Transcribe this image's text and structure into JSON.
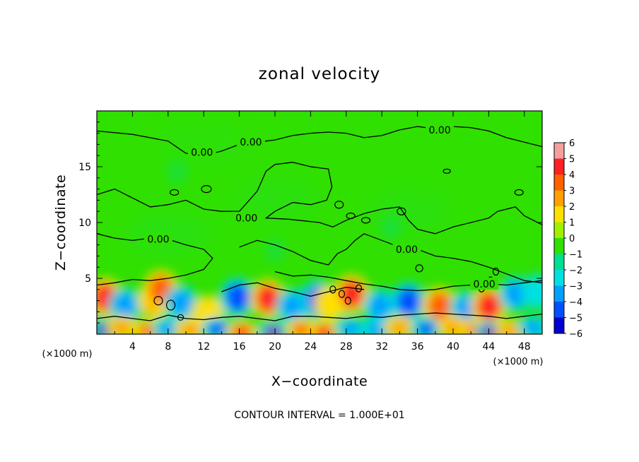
{
  "chart_data": {
    "type": "heatmap",
    "title": "zonal velocity",
    "xlabel": "X−coordinate",
    "ylabel": "Z−coordinate",
    "x_unit": "(×1000 m)",
    "y_unit": "(×1000 m)",
    "xlim": [
      0,
      50
    ],
    "ylim": [
      0,
      20
    ],
    "x_ticks": [
      4,
      8,
      12,
      16,
      20,
      24,
      28,
      32,
      36,
      40,
      44,
      48
    ],
    "y_ticks": [
      5,
      10,
      15
    ],
    "colorbar": {
      "ticks": [
        "6",
        "5",
        "4",
        "3",
        "2",
        "1",
        "0",
        "−1",
        "−2",
        "−3",
        "−4",
        "−5",
        "−6"
      ],
      "values": [
        6,
        5,
        4,
        3,
        2,
        1,
        0,
        -1,
        -2,
        -3,
        -4,
        -5,
        -6
      ],
      "colors": [
        "#f4a0a0",
        "#ff2020",
        "#ff6000",
        "#ffa000",
        "#ffe000",
        "#a0f000",
        "#30e000",
        "#00e090",
        "#00e0e0",
        "#00a0ff",
        "#0050ff",
        "#0000d0",
        "#8000c0"
      ]
    },
    "contour_interval": "CONTOUR INTERVAL = 1.000E+01",
    "contour_labels": [
      {
        "text": "0.00",
        "x": 11.8,
        "y": 16.3
      },
      {
        "text": "0.00",
        "x": 17.3,
        "y": 17.2
      },
      {
        "text": "0.00",
        "x": 38.5,
        "y": 18.3
      },
      {
        "text": "0.00",
        "x": 16.8,
        "y": 10.4
      },
      {
        "text": "0.00",
        "x": 6.9,
        "y": 8.5
      },
      {
        "text": "0.00",
        "x": 34.8,
        "y": 7.6
      },
      {
        "text": "0.00",
        "x": 43.5,
        "y": 4.5
      }
    ],
    "features": [
      {
        "x": 0.9,
        "z": 3.3,
        "v": 5
      },
      {
        "x": 3.2,
        "z": 2.6,
        "v": -3
      },
      {
        "x": 6.5,
        "z": 3.0,
        "v": 3
      },
      {
        "x": 7.2,
        "z": 4.0,
        "v": 4
      },
      {
        "x": 9.5,
        "z": 2.8,
        "v": -3
      },
      {
        "x": 12.5,
        "z": 1.9,
        "v": 2
      },
      {
        "x": 15.8,
        "z": 3.3,
        "v": -4
      },
      {
        "x": 19.2,
        "z": 3.2,
        "v": 5
      },
      {
        "x": 22.0,
        "z": 2.5,
        "v": -3
      },
      {
        "x": 24.8,
        "z": 3.1,
        "v": -4
      },
      {
        "x": 26.2,
        "z": 2.8,
        "v": 2
      },
      {
        "x": 28.6,
        "z": 3.6,
        "v": 5
      },
      {
        "x": 31.8,
        "z": 2.5,
        "v": -3
      },
      {
        "x": 35.0,
        "z": 2.9,
        "v": -4
      },
      {
        "x": 38.5,
        "z": 2.5,
        "v": 4
      },
      {
        "x": 41.5,
        "z": 2.3,
        "v": -3
      },
      {
        "x": 44.0,
        "z": 2.5,
        "v": 5
      },
      {
        "x": 47.0,
        "z": 3.6,
        "v": -3
      },
      {
        "x": 49.5,
        "z": 3.8,
        "v": -2
      },
      {
        "x": 0.9,
        "z": 0.4,
        "v": -5
      },
      {
        "x": 2.8,
        "z": 0.6,
        "v": 3
      },
      {
        "x": 5.8,
        "z": 0.3,
        "v": 4
      },
      {
        "x": 8.0,
        "z": 0.5,
        "v": -3
      },
      {
        "x": 10.5,
        "z": 0.4,
        "v": 3
      },
      {
        "x": 13.5,
        "z": 0.5,
        "v": -4
      },
      {
        "x": 16.3,
        "z": 0.2,
        "v": 5
      },
      {
        "x": 19.8,
        "z": 0.2,
        "v": -6
      },
      {
        "x": 23.0,
        "z": 0.4,
        "v": 4
      },
      {
        "x": 25.5,
        "z": 0.2,
        "v": 5
      },
      {
        "x": 28.5,
        "z": 0.5,
        "v": -3
      },
      {
        "x": 31.5,
        "z": 0.4,
        "v": -3
      },
      {
        "x": 34.0,
        "z": 0.6,
        "v": 3
      },
      {
        "x": 37.0,
        "z": 0.5,
        "v": -4
      },
      {
        "x": 40.0,
        "z": 0.6,
        "v": 3
      },
      {
        "x": 42.5,
        "z": 0.3,
        "v": 4
      },
      {
        "x": 44.2,
        "z": 0.2,
        "v": -6
      },
      {
        "x": 46.5,
        "z": 0.3,
        "v": 3
      },
      {
        "x": 49.0,
        "z": 0.6,
        "v": -3
      },
      {
        "x": 20.0,
        "z": 7.5,
        "v": -1
      },
      {
        "x": 33.0,
        "z": 9.5,
        "v": -1
      },
      {
        "x": 9.0,
        "z": 14.5,
        "v": -1
      }
    ]
  }
}
